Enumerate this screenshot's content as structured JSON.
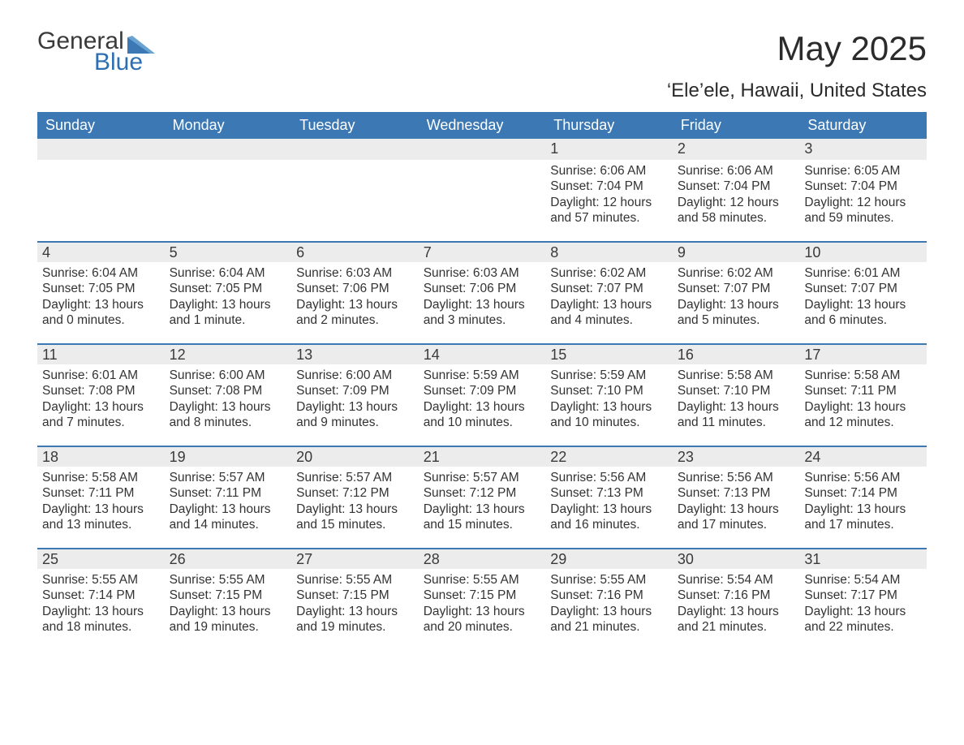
{
  "brand": {
    "name_part1": "General",
    "name_part2": "Blue",
    "color1": "#3a3a3a",
    "color2": "#2d6fb0",
    "icon_color": "#3c78b4"
  },
  "header": {
    "title": "May 2025",
    "location": "‘Ele’ele, Hawaii, United States"
  },
  "calendar": {
    "type": "calendar-table",
    "columns": [
      "Sunday",
      "Monday",
      "Tuesday",
      "Wednesday",
      "Thursday",
      "Friday",
      "Saturday"
    ],
    "header_bg": "#3c78b4",
    "header_text_color": "#ffffff",
    "daynum_bg": "#ececec",
    "row_divider_color": "#3c78b4",
    "body_text_color": "#333333",
    "font_family": "Arial",
    "header_fontsize": 18,
    "daynum_fontsize": 18,
    "body_fontsize": 15.5,
    "weeks": [
      [
        {
          "day": "",
          "sunrise": "",
          "sunset": "",
          "daylight1": "",
          "daylight2": ""
        },
        {
          "day": "",
          "sunrise": "",
          "sunset": "",
          "daylight1": "",
          "daylight2": ""
        },
        {
          "day": "",
          "sunrise": "",
          "sunset": "",
          "daylight1": "",
          "daylight2": ""
        },
        {
          "day": "",
          "sunrise": "",
          "sunset": "",
          "daylight1": "",
          "daylight2": ""
        },
        {
          "day": "1",
          "sunrise": "Sunrise: 6:06 AM",
          "sunset": "Sunset: 7:04 PM",
          "daylight1": "Daylight: 12 hours",
          "daylight2": "and 57 minutes."
        },
        {
          "day": "2",
          "sunrise": "Sunrise: 6:06 AM",
          "sunset": "Sunset: 7:04 PM",
          "daylight1": "Daylight: 12 hours",
          "daylight2": "and 58 minutes."
        },
        {
          "day": "3",
          "sunrise": "Sunrise: 6:05 AM",
          "sunset": "Sunset: 7:04 PM",
          "daylight1": "Daylight: 12 hours",
          "daylight2": "and 59 minutes."
        }
      ],
      [
        {
          "day": "4",
          "sunrise": "Sunrise: 6:04 AM",
          "sunset": "Sunset: 7:05 PM",
          "daylight1": "Daylight: 13 hours",
          "daylight2": "and 0 minutes."
        },
        {
          "day": "5",
          "sunrise": "Sunrise: 6:04 AM",
          "sunset": "Sunset: 7:05 PM",
          "daylight1": "Daylight: 13 hours",
          "daylight2": "and 1 minute."
        },
        {
          "day": "6",
          "sunrise": "Sunrise: 6:03 AM",
          "sunset": "Sunset: 7:06 PM",
          "daylight1": "Daylight: 13 hours",
          "daylight2": "and 2 minutes."
        },
        {
          "day": "7",
          "sunrise": "Sunrise: 6:03 AM",
          "sunset": "Sunset: 7:06 PM",
          "daylight1": "Daylight: 13 hours",
          "daylight2": "and 3 minutes."
        },
        {
          "day": "8",
          "sunrise": "Sunrise: 6:02 AM",
          "sunset": "Sunset: 7:07 PM",
          "daylight1": "Daylight: 13 hours",
          "daylight2": "and 4 minutes."
        },
        {
          "day": "9",
          "sunrise": "Sunrise: 6:02 AM",
          "sunset": "Sunset: 7:07 PM",
          "daylight1": "Daylight: 13 hours",
          "daylight2": "and 5 minutes."
        },
        {
          "day": "10",
          "sunrise": "Sunrise: 6:01 AM",
          "sunset": "Sunset: 7:07 PM",
          "daylight1": "Daylight: 13 hours",
          "daylight2": "and 6 minutes."
        }
      ],
      [
        {
          "day": "11",
          "sunrise": "Sunrise: 6:01 AM",
          "sunset": "Sunset: 7:08 PM",
          "daylight1": "Daylight: 13 hours",
          "daylight2": "and 7 minutes."
        },
        {
          "day": "12",
          "sunrise": "Sunrise: 6:00 AM",
          "sunset": "Sunset: 7:08 PM",
          "daylight1": "Daylight: 13 hours",
          "daylight2": "and 8 minutes."
        },
        {
          "day": "13",
          "sunrise": "Sunrise: 6:00 AM",
          "sunset": "Sunset: 7:09 PM",
          "daylight1": "Daylight: 13 hours",
          "daylight2": "and 9 minutes."
        },
        {
          "day": "14",
          "sunrise": "Sunrise: 5:59 AM",
          "sunset": "Sunset: 7:09 PM",
          "daylight1": "Daylight: 13 hours",
          "daylight2": "and 10 minutes."
        },
        {
          "day": "15",
          "sunrise": "Sunrise: 5:59 AM",
          "sunset": "Sunset: 7:10 PM",
          "daylight1": "Daylight: 13 hours",
          "daylight2": "and 10 minutes."
        },
        {
          "day": "16",
          "sunrise": "Sunrise: 5:58 AM",
          "sunset": "Sunset: 7:10 PM",
          "daylight1": "Daylight: 13 hours",
          "daylight2": "and 11 minutes."
        },
        {
          "day": "17",
          "sunrise": "Sunrise: 5:58 AM",
          "sunset": "Sunset: 7:11 PM",
          "daylight1": "Daylight: 13 hours",
          "daylight2": "and 12 minutes."
        }
      ],
      [
        {
          "day": "18",
          "sunrise": "Sunrise: 5:58 AM",
          "sunset": "Sunset: 7:11 PM",
          "daylight1": "Daylight: 13 hours",
          "daylight2": "and 13 minutes."
        },
        {
          "day": "19",
          "sunrise": "Sunrise: 5:57 AM",
          "sunset": "Sunset: 7:11 PM",
          "daylight1": "Daylight: 13 hours",
          "daylight2": "and 14 minutes."
        },
        {
          "day": "20",
          "sunrise": "Sunrise: 5:57 AM",
          "sunset": "Sunset: 7:12 PM",
          "daylight1": "Daylight: 13 hours",
          "daylight2": "and 15 minutes."
        },
        {
          "day": "21",
          "sunrise": "Sunrise: 5:57 AM",
          "sunset": "Sunset: 7:12 PM",
          "daylight1": "Daylight: 13 hours",
          "daylight2": "and 15 minutes."
        },
        {
          "day": "22",
          "sunrise": "Sunrise: 5:56 AM",
          "sunset": "Sunset: 7:13 PM",
          "daylight1": "Daylight: 13 hours",
          "daylight2": "and 16 minutes."
        },
        {
          "day": "23",
          "sunrise": "Sunrise: 5:56 AM",
          "sunset": "Sunset: 7:13 PM",
          "daylight1": "Daylight: 13 hours",
          "daylight2": "and 17 minutes."
        },
        {
          "day": "24",
          "sunrise": "Sunrise: 5:56 AM",
          "sunset": "Sunset: 7:14 PM",
          "daylight1": "Daylight: 13 hours",
          "daylight2": "and 17 minutes."
        }
      ],
      [
        {
          "day": "25",
          "sunrise": "Sunrise: 5:55 AM",
          "sunset": "Sunset: 7:14 PM",
          "daylight1": "Daylight: 13 hours",
          "daylight2": "and 18 minutes."
        },
        {
          "day": "26",
          "sunrise": "Sunrise: 5:55 AM",
          "sunset": "Sunset: 7:15 PM",
          "daylight1": "Daylight: 13 hours",
          "daylight2": "and 19 minutes."
        },
        {
          "day": "27",
          "sunrise": "Sunrise: 5:55 AM",
          "sunset": "Sunset: 7:15 PM",
          "daylight1": "Daylight: 13 hours",
          "daylight2": "and 19 minutes."
        },
        {
          "day": "28",
          "sunrise": "Sunrise: 5:55 AM",
          "sunset": "Sunset: 7:15 PM",
          "daylight1": "Daylight: 13 hours",
          "daylight2": "and 20 minutes."
        },
        {
          "day": "29",
          "sunrise": "Sunrise: 5:55 AM",
          "sunset": "Sunset: 7:16 PM",
          "daylight1": "Daylight: 13 hours",
          "daylight2": "and 21 minutes."
        },
        {
          "day": "30",
          "sunrise": "Sunrise: 5:54 AM",
          "sunset": "Sunset: 7:16 PM",
          "daylight1": "Daylight: 13 hours",
          "daylight2": "and 21 minutes."
        },
        {
          "day": "31",
          "sunrise": "Sunrise: 5:54 AM",
          "sunset": "Sunset: 7:17 PM",
          "daylight1": "Daylight: 13 hours",
          "daylight2": "and 22 minutes."
        }
      ]
    ]
  }
}
